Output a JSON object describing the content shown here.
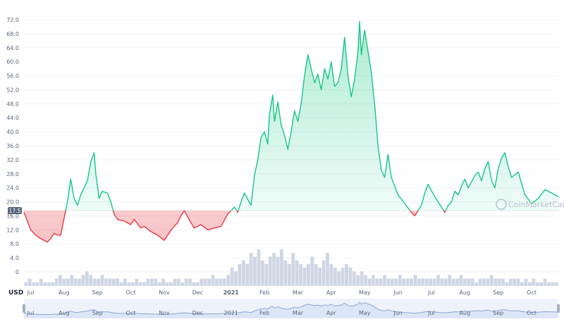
{
  "chart_data": {
    "type": "line",
    "unit_label": "USD",
    "watermark": "CoinMarketCap",
    "current_price_label": "17.5",
    "baseline": 17.5,
    "ylim": [
      0,
      72
    ],
    "yticks": [
      0,
      4,
      8,
      12,
      16,
      20,
      24,
      28,
      32,
      36,
      40,
      44,
      48,
      52,
      56,
      60,
      64,
      68,
      72
    ],
    "ytick_labels": [
      "0",
      "4.0",
      "8.0",
      "12.0",
      "16.0",
      "20.0",
      "24.0",
      "28.0",
      "32.0",
      "36.0",
      "40.0",
      "44.0",
      "48.0",
      "52.0",
      "56.0",
      "60.0",
      "64.0",
      "68.0",
      "72.0"
    ],
    "x_range": [
      0,
      16
    ],
    "xticks": [
      {
        "x": 0.2,
        "label": "Jul"
      },
      {
        "x": 1.2,
        "label": "Aug"
      },
      {
        "x": 2.2,
        "label": "Sep"
      },
      {
        "x": 3.2,
        "label": "Oct"
      },
      {
        "x": 4.2,
        "label": "Nov"
      },
      {
        "x": 5.2,
        "label": "Dec"
      },
      {
        "x": 6.2,
        "label": "2021"
      },
      {
        "x": 7.2,
        "label": "Feb"
      },
      {
        "x": 8.2,
        "label": "Mar"
      },
      {
        "x": 9.2,
        "label": "Apr"
      },
      {
        "x": 10.2,
        "label": "May"
      },
      {
        "x": 11.2,
        "label": "Jun"
      },
      {
        "x": 12.2,
        "label": "Jul"
      },
      {
        "x": 13.2,
        "label": "Aug"
      },
      {
        "x": 14.2,
        "label": "Sep"
      },
      {
        "x": 15.2,
        "label": "Oct"
      }
    ],
    "series": [
      {
        "x": [
          0,
          0.2,
          0.35,
          0.5,
          0.6,
          0.7,
          0.8,
          0.9,
          1.0,
          1.1,
          1.3,
          1.4,
          1.5,
          1.6,
          1.7,
          1.8,
          1.9,
          2.0,
          2.1,
          2.15,
          2.25,
          2.35,
          2.5,
          2.6,
          2.7,
          2.8,
          3.0,
          3.2,
          3.3,
          3.5,
          3.6,
          3.8,
          4.0,
          4.2,
          4.3,
          4.45,
          4.6,
          4.7,
          4.8,
          5.0,
          5.1,
          5.3,
          5.5,
          5.7,
          5.9,
          6.1,
          6.3,
          6.4,
          6.5,
          6.6,
          6.8,
          6.9,
          7.0,
          7.1,
          7.2,
          7.3,
          7.35,
          7.45,
          7.5,
          7.6,
          7.7,
          7.8,
          7.9,
          8.0,
          8.1,
          8.2,
          8.3,
          8.4,
          8.5,
          8.6,
          8.7,
          8.8,
          8.9,
          9.0,
          9.1,
          9.2,
          9.3,
          9.4,
          9.5,
          9.6,
          9.7,
          9.8,
          9.9,
          10.0,
          10.05,
          10.1,
          10.2,
          10.3,
          10.4,
          10.5,
          10.6,
          10.7,
          10.8,
          10.9,
          11.0,
          11.2,
          11.4,
          11.6,
          11.7,
          11.8,
          11.9,
          12.0,
          12.1,
          12.3,
          12.4,
          12.5,
          12.6,
          12.7,
          12.8,
          12.9,
          13.0,
          13.1,
          13.2,
          13.3,
          13.5,
          13.6,
          13.7,
          13.8,
          13.9,
          14.0,
          14.1,
          14.2,
          14.3,
          14.4,
          14.5,
          14.6,
          14.8,
          15.0,
          15.2,
          15.4,
          15.6,
          15.8,
          16.0
        ],
        "values": [
          17.0,
          12.0,
          10.5,
          9.5,
          9.0,
          8.5,
          9.5,
          11.0,
          10.5,
          10.5,
          20.0,
          26.5,
          21.0,
          19.0,
          22.0,
          24.0,
          26.0,
          31.5,
          34.0,
          28.0,
          21.0,
          23.0,
          22.5,
          20.0,
          16.5,
          15.0,
          14.5,
          13.5,
          15.0,
          12.5,
          13.0,
          11.5,
          10.5,
          9.0,
          10.5,
          12.5,
          14.0,
          16.0,
          17.5,
          14.0,
          12.5,
          13.5,
          12.0,
          12.5,
          13.0,
          16.5,
          18.5,
          17.0,
          20.0,
          22.5,
          19.0,
          27.5,
          32.0,
          38.5,
          40.0,
          36.5,
          45.0,
          50.5,
          43.0,
          48.5,
          42.0,
          39.0,
          35.0,
          40.0,
          46.0,
          43.0,
          48.0,
          56.0,
          62.0,
          58.0,
          54.0,
          56.5,
          52.0,
          58.0,
          55.0,
          60.0,
          53.0,
          54.0,
          58.0,
          67.0,
          56.0,
          50.0,
          55.0,
          63.0,
          71.5,
          62.0,
          69.0,
          63.0,
          57.0,
          48.0,
          36.0,
          29.0,
          27.0,
          33.5,
          27.0,
          22.0,
          19.5,
          17.0,
          16.0,
          17.5,
          19.0,
          22.5,
          25.0,
          21.5,
          20.0,
          18.5,
          17.0,
          19.0,
          20.0,
          23.0,
          22.0,
          24.5,
          26.5,
          24.0,
          27.5,
          28.5,
          26.0,
          29.5,
          31.5,
          26.0,
          24.0,
          29.5,
          32.5,
          34.0,
          30.0,
          27.0,
          28.5,
          22.0,
          19.5,
          21.0,
          23.5,
          22.5,
          21.5
        ]
      }
    ],
    "volume": [
      1,
      2,
      1,
      1,
      2,
      1,
      1,
      1,
      2,
      3,
      2,
      2,
      3,
      2,
      2,
      3,
      4,
      3,
      2,
      2,
      3,
      2,
      2,
      2,
      2,
      1,
      2,
      1,
      1,
      2,
      1,
      1,
      2,
      2,
      2,
      1,
      2,
      1,
      1,
      2,
      2,
      1,
      2,
      2,
      1,
      1,
      2,
      2,
      2,
      3,
      2,
      2,
      2,
      3,
      5,
      4,
      6,
      7,
      6,
      9,
      8,
      10,
      7,
      6,
      8,
      9,
      8,
      10,
      7,
      6,
      9,
      7,
      6,
      5,
      6,
      8,
      6,
      5,
      7,
      9,
      6,
      5,
      4,
      5,
      6,
      5,
      4,
      3,
      4,
      3,
      2,
      3,
      2,
      2,
      3,
      2,
      2,
      2,
      3,
      2,
      2,
      2,
      3,
      2,
      2,
      2,
      2,
      2,
      3,
      2,
      2,
      3,
      2,
      2,
      3,
      2,
      2,
      2,
      1,
      2,
      2,
      2,
      3,
      2,
      2,
      2,
      1,
      2,
      2,
      2,
      1,
      2,
      1,
      2,
      1,
      1,
      2,
      1,
      1,
      1
    ],
    "colors": {
      "up_line": "#16c784",
      "down_line": "#ea3943",
      "baseline": "#c7cdd7",
      "grid": "#eff2f5",
      "volume": "#cfd6e4",
      "nav_fill": "#dde6f7",
      "nav_line": "#8da4d4"
    }
  }
}
